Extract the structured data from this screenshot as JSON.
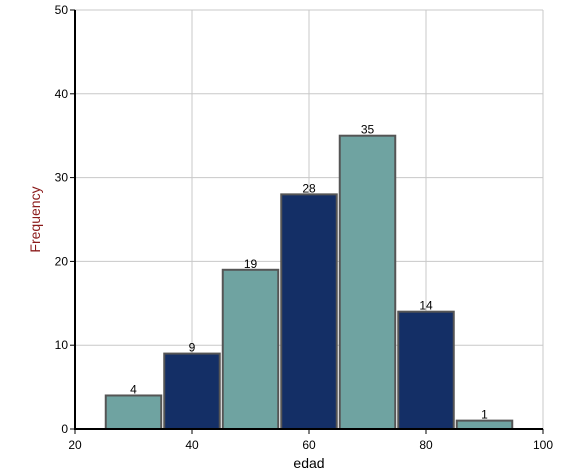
{
  "chart_data": {
    "type": "bar",
    "title": "",
    "xlabel": "edad",
    "ylabel": "Frequency",
    "xlim": [
      20,
      100
    ],
    "ylim": [
      0,
      50
    ],
    "x_ticks": [
      20,
      40,
      60,
      80,
      100
    ],
    "y_ticks": [
      0,
      10,
      20,
      30,
      40,
      50
    ],
    "grid": true,
    "bins": [
      {
        "start": 25,
        "end": 35,
        "value": 4,
        "color": "#6fa3a1"
      },
      {
        "start": 35,
        "end": 45,
        "value": 9,
        "color": "#142f66"
      },
      {
        "start": 45,
        "end": 55,
        "value": 19,
        "color": "#6fa3a1"
      },
      {
        "start": 55,
        "end": 65,
        "value": 28,
        "color": "#142f66"
      },
      {
        "start": 65,
        "end": 75,
        "value": 35,
        "color": "#6fa3a1"
      },
      {
        "start": 75,
        "end": 85,
        "value": 14,
        "color": "#142f66"
      },
      {
        "start": 85,
        "end": 95,
        "value": 1,
        "color": "#6fa3a1"
      }
    ],
    "colors": {
      "teal": "#6fa3a1",
      "navy": "#142f66",
      "bar_border": "#555555",
      "grid": "#c8c8c8",
      "ylabel_color": "#8b1a1a",
      "xlabel_color": "#000000"
    }
  }
}
